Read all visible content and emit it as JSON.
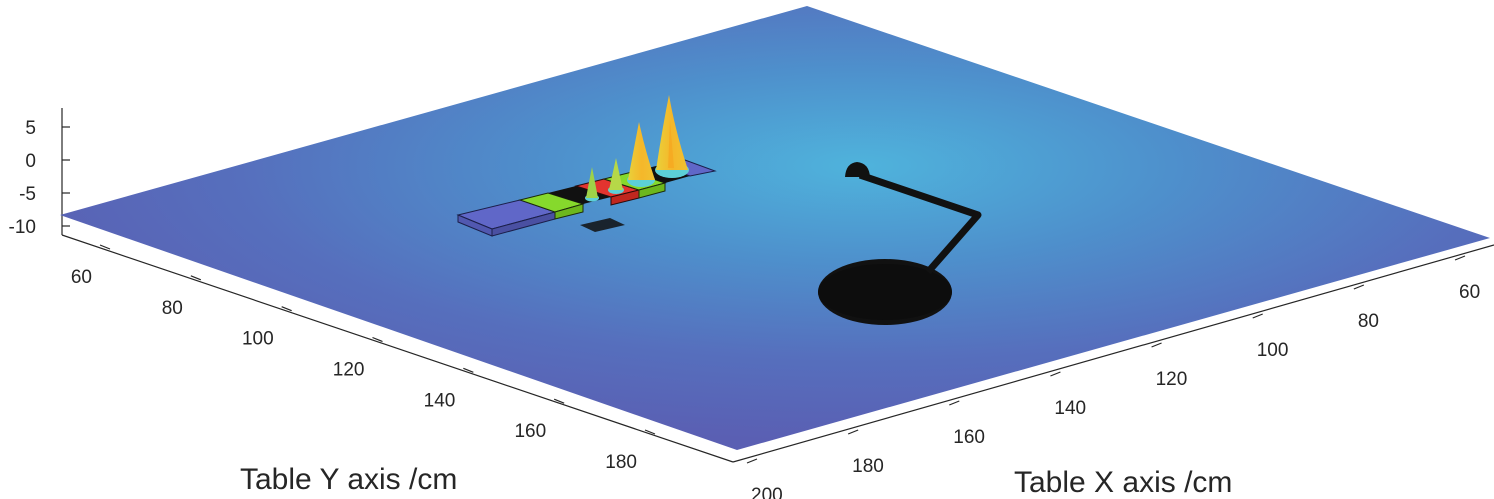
{
  "chart_data": {
    "type": "surface",
    "xlabel": "Table X axis /cm",
    "ylabel": "Table Y axis /cm",
    "zlabel": "",
    "x_ticks": [
      60,
      80,
      100,
      120,
      140,
      160,
      180,
      200
    ],
    "y_ticks": [
      60,
      80,
      100,
      120,
      140,
      160,
      180
    ],
    "z_ticks": [
      5,
      0,
      -5,
      -10
    ],
    "x_ticks_visible": [
      60,
      80,
      100,
      120,
      140,
      160,
      180,
      200
    ],
    "colors": {
      "surface_low": "#5a5fb3",
      "surface_high": "#4aa6d6",
      "peak_yellow": "#f5c82a",
      "peak_cyan": "#5cd0d8",
      "bar_blue": "#5d63c4",
      "bar_green": "#7fd12a",
      "bar_red": "#e3342f",
      "bar_black": "#111111",
      "lamp": "#111111",
      "axis": "#262626"
    },
    "peaks": [
      {
        "label": "",
        "height": 9
      },
      {
        "label": "",
        "height": 7
      },
      {
        "label": "",
        "height": 3
      },
      {
        "label": "",
        "height": 2
      }
    ],
    "grid": false,
    "legend": "none"
  }
}
